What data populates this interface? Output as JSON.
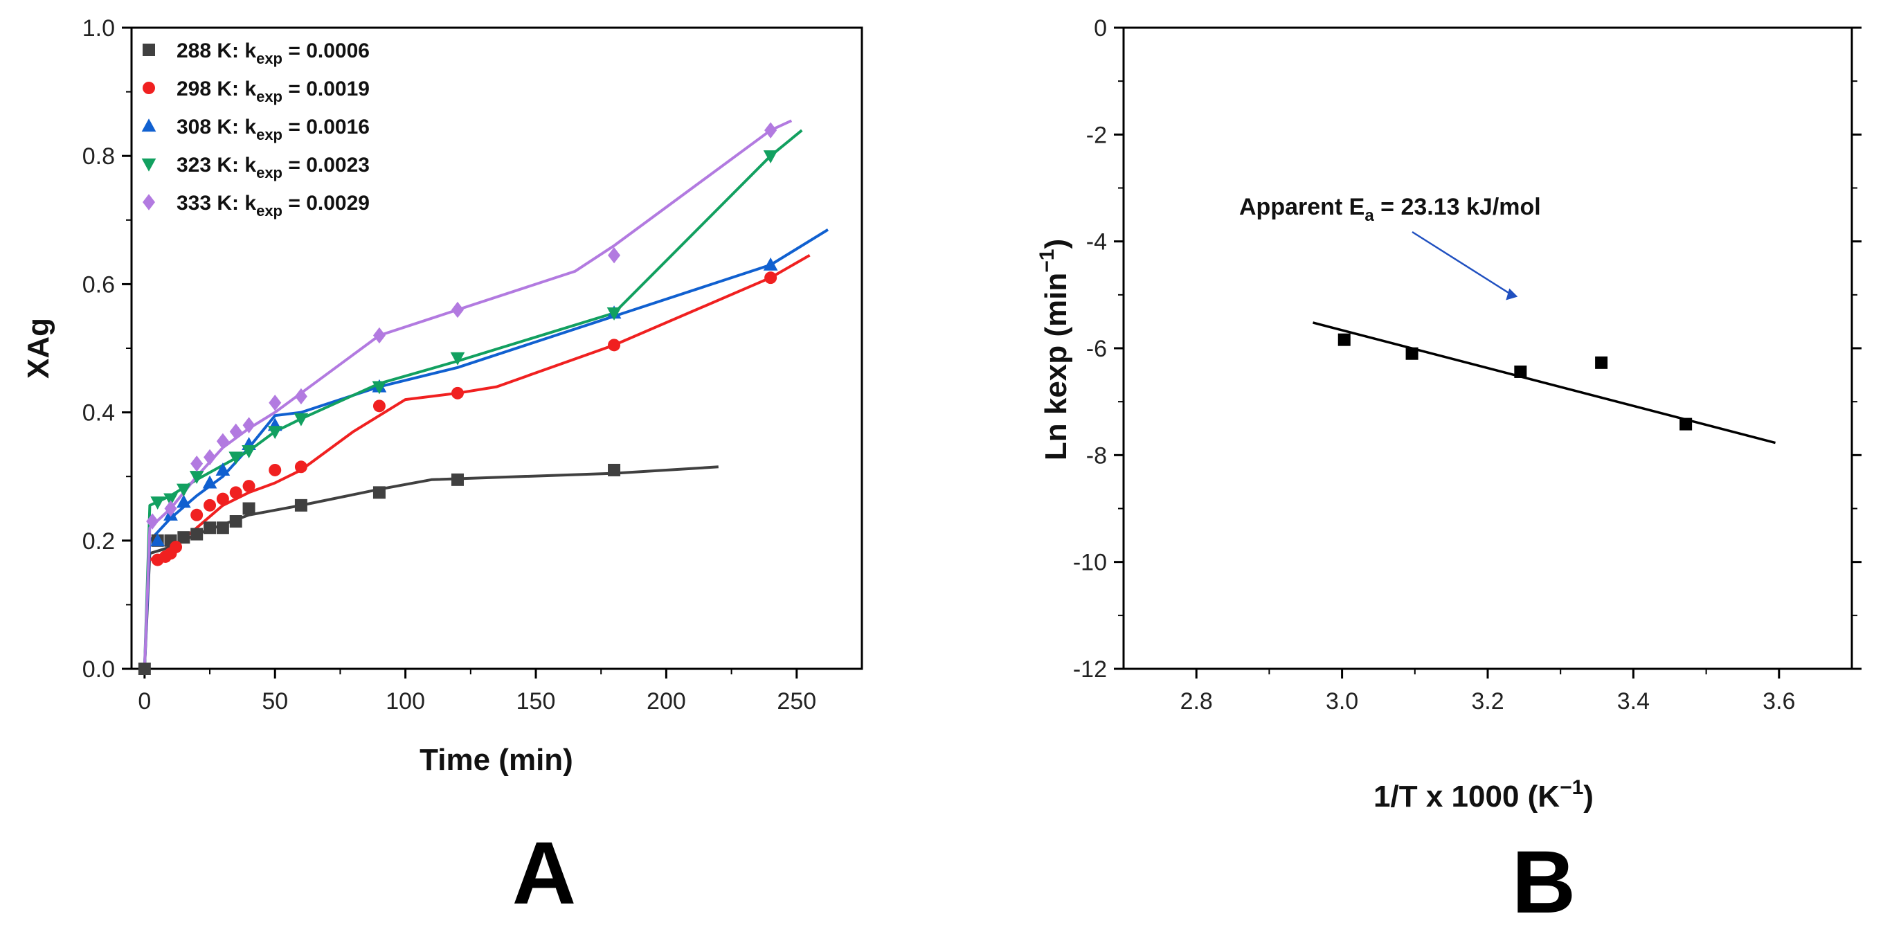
{
  "chart_data": [
    {
      "type": "line",
      "panel_label": "A",
      "xlabel": "Time (min)",
      "ylabel": "XAg",
      "xlim": [
        -5,
        275
      ],
      "ylim": [
        0,
        1.0
      ],
      "xticks": [
        0,
        50,
        100,
        150,
        200,
        250
      ],
      "yticks": [
        0.0,
        0.2,
        0.4,
        0.6,
        0.8,
        1.0
      ],
      "x_tick_labels": [
        "0",
        "50",
        "100",
        "150",
        "200",
        "250"
      ],
      "y_tick_labels": [
        "0.0",
        "0.2",
        "0.4",
        "0.6",
        "0.8",
        "1.0"
      ],
      "legend_position": "top-left",
      "series": [
        {
          "name": "288 K: kexp = 0.0006",
          "legend_prefix": "288 K: k",
          "legend_sub": "exp",
          "legend_suffix": " = 0.0006",
          "color": "#404040",
          "marker": "square",
          "points": [
            [
              0,
              0.0
            ],
            [
              5,
              0.2
            ],
            [
              10,
              0.2
            ],
            [
              15,
              0.205
            ],
            [
              20,
              0.21
            ],
            [
              25,
              0.22
            ],
            [
              30,
              0.22
            ],
            [
              35,
              0.23
            ],
            [
              40,
              0.25
            ],
            [
              60,
              0.255
            ],
            [
              90,
              0.275
            ],
            [
              120,
              0.295
            ],
            [
              180,
              0.31
            ]
          ],
          "fit": [
            [
              0,
              0.0
            ],
            [
              2,
              0.18
            ],
            [
              10,
              0.19
            ],
            [
              20,
              0.21
            ],
            [
              40,
              0.24
            ],
            [
              60,
              0.255
            ],
            [
              90,
              0.28
            ],
            [
              110,
              0.295
            ],
            [
              180,
              0.305
            ],
            [
              220,
              0.315
            ]
          ]
        },
        {
          "name": "298 K: kexp = 0.0019",
          "legend_prefix": "298 K: k",
          "legend_sub": "exp",
          "legend_suffix": " = 0.0019",
          "color": "#f02020",
          "marker": "circle",
          "points": [
            [
              5,
              0.17
            ],
            [
              8,
              0.175
            ],
            [
              10,
              0.18
            ],
            [
              12,
              0.19
            ],
            [
              20,
              0.24
            ],
            [
              25,
              0.255
            ],
            [
              30,
              0.265
            ],
            [
              35,
              0.275
            ],
            [
              40,
              0.285
            ],
            [
              50,
              0.31
            ],
            [
              60,
              0.315
            ],
            [
              90,
              0.41
            ],
            [
              120,
              0.43
            ],
            [
              180,
              0.505
            ],
            [
              240,
              0.61
            ]
          ],
          "fit": [
            [
              2,
              0.17
            ],
            [
              10,
              0.185
            ],
            [
              20,
              0.22
            ],
            [
              30,
              0.255
            ],
            [
              40,
              0.275
            ],
            [
              50,
              0.29
            ],
            [
              60,
              0.31
            ],
            [
              80,
              0.37
            ],
            [
              100,
              0.42
            ],
            [
              120,
              0.43
            ],
            [
              135,
              0.44
            ],
            [
              180,
              0.505
            ],
            [
              240,
              0.61
            ],
            [
              255,
              0.645
            ]
          ]
        },
        {
          "name": "308 K: kexp = 0.0016",
          "legend_prefix": "308 K: k",
          "legend_sub": "exp",
          "legend_suffix": " = 0.0016",
          "color": "#1060d0",
          "marker": "triangle-up",
          "points": [
            [
              5,
              0.2
            ],
            [
              10,
              0.24
            ],
            [
              15,
              0.26
            ],
            [
              25,
              0.29
            ],
            [
              30,
              0.31
            ],
            [
              40,
              0.35
            ],
            [
              50,
              0.38
            ],
            [
              90,
              0.44
            ],
            [
              180,
              0.555
            ],
            [
              240,
              0.63
            ]
          ],
          "fit": [
            [
              0,
              0.0
            ],
            [
              2,
              0.2
            ],
            [
              10,
              0.235
            ],
            [
              20,
              0.27
            ],
            [
              30,
              0.3
            ],
            [
              40,
              0.345
            ],
            [
              50,
              0.395
            ],
            [
              60,
              0.4
            ],
            [
              90,
              0.44
            ],
            [
              120,
              0.47
            ],
            [
              180,
              0.55
            ],
            [
              240,
              0.63
            ],
            [
              262,
              0.685
            ]
          ]
        },
        {
          "name": "323 K: kexp = 0.0023",
          "legend_prefix": "323 K: k",
          "legend_sub": "exp",
          "legend_suffix": " = 0.0023",
          "color": "#12a060",
          "marker": "triangle-down",
          "points": [
            [
              5,
              0.26
            ],
            [
              10,
              0.265
            ],
            [
              15,
              0.28
            ],
            [
              20,
              0.3
            ],
            [
              35,
              0.33
            ],
            [
              40,
              0.34
            ],
            [
              50,
              0.37
            ],
            [
              60,
              0.39
            ],
            [
              90,
              0.44
            ],
            [
              120,
              0.485
            ],
            [
              180,
              0.555
            ],
            [
              240,
              0.8
            ]
          ],
          "fit": [
            [
              0,
              0.0
            ],
            [
              2,
              0.255
            ],
            [
              10,
              0.27
            ],
            [
              20,
              0.295
            ],
            [
              40,
              0.34
            ],
            [
              50,
              0.37
            ],
            [
              60,
              0.39
            ],
            [
              90,
              0.445
            ],
            [
              120,
              0.48
            ],
            [
              180,
              0.555
            ],
            [
              240,
              0.8
            ],
            [
              252,
              0.84
            ]
          ]
        },
        {
          "name": "333 K: kexp = 0.0029",
          "legend_prefix": "333 K: k",
          "legend_sub": "exp",
          "legend_suffix": " = 0.0029",
          "color": "#b27ae0",
          "marker": "diamond",
          "points": [
            [
              3,
              0.23
            ],
            [
              10,
              0.25
            ],
            [
              20,
              0.32
            ],
            [
              25,
              0.33
            ],
            [
              30,
              0.355
            ],
            [
              35,
              0.37
            ],
            [
              40,
              0.38
            ],
            [
              50,
              0.415
            ],
            [
              60,
              0.425
            ],
            [
              90,
              0.52
            ],
            [
              120,
              0.56
            ],
            [
              180,
              0.645
            ],
            [
              240,
              0.84
            ]
          ],
          "fit": [
            [
              0,
              0.0
            ],
            [
              2,
              0.22
            ],
            [
              10,
              0.25
            ],
            [
              20,
              0.3
            ],
            [
              30,
              0.345
            ],
            [
              40,
              0.375
            ],
            [
              50,
              0.4
            ],
            [
              60,
              0.43
            ],
            [
              90,
              0.52
            ],
            [
              120,
              0.56
            ],
            [
              165,
              0.62
            ],
            [
              180,
              0.66
            ],
            [
              240,
              0.84
            ],
            [
              248,
              0.855
            ]
          ]
        }
      ]
    },
    {
      "type": "scatter",
      "panel_label": "B",
      "xlabel_main": "1/T x 1000 (K",
      "xlabel_sup": "−1",
      "xlabel_close": ")",
      "ylabel_main": "Ln kexp (min",
      "ylabel_sup": "−1",
      "ylabel_close": ")",
      "xlim": [
        2.7,
        3.7
      ],
      "ylim": [
        -12,
        0
      ],
      "xticks": [
        2.8,
        3.0,
        3.2,
        3.4,
        3.6
      ],
      "yticks": [
        0,
        -2,
        -4,
        -6,
        -8,
        -10,
        -12
      ],
      "x_tick_labels": [
        "2.8",
        "3.0",
        "3.2",
        "3.4",
        "3.6"
      ],
      "y_tick_labels": [
        "0",
        "-2",
        "-4",
        "-6",
        "-8",
        "-10",
        "-12"
      ],
      "points": [
        [
          3.003,
          -5.84
        ],
        [
          3.096,
          -6.1
        ],
        [
          3.245,
          -6.44
        ],
        [
          3.356,
          -6.27
        ],
        [
          3.472,
          -7.42
        ]
      ],
      "fit_line": [
        [
          2.96,
          -5.52
        ],
        [
          3.595,
          -7.77
        ]
      ],
      "annotation": {
        "prefix": "Apparent E",
        "sub": "a",
        "suffix": " = 23.13 kJ/mol",
        "arrow_to": [
          3.225,
          -5.1
        ]
      },
      "marker_color": "#000000",
      "arrow_color": "#2050c0"
    }
  ]
}
